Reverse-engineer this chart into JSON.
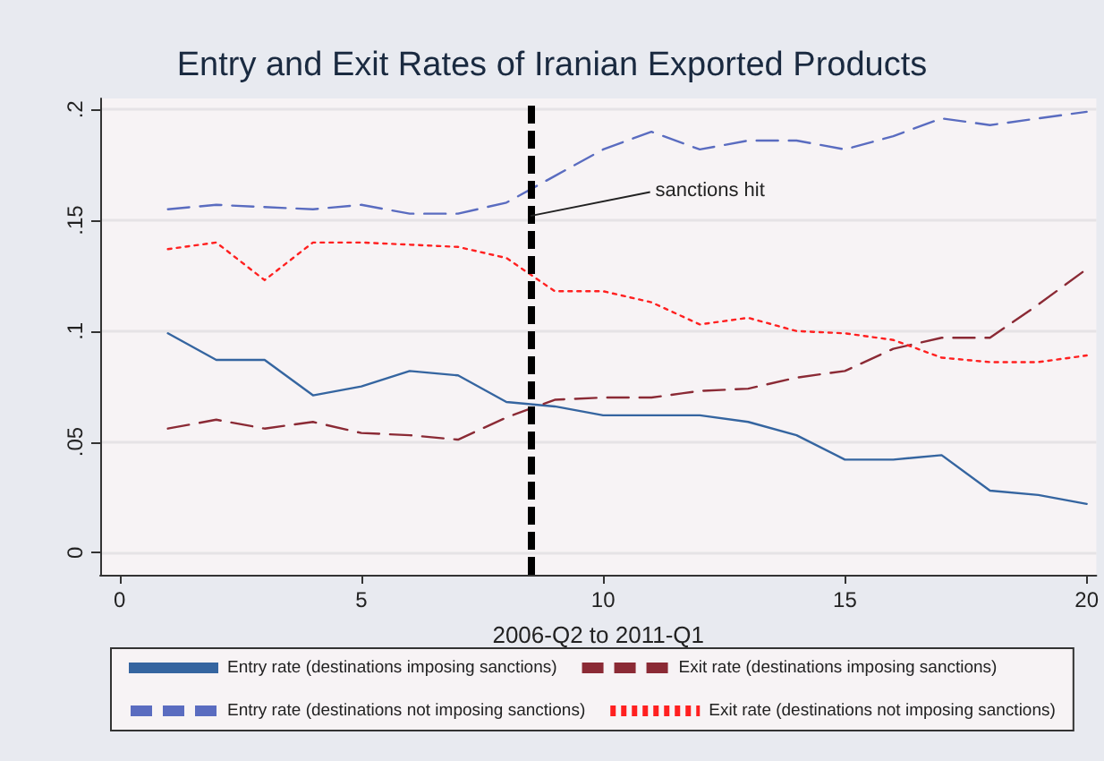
{
  "chart_data": {
    "type": "line",
    "title": "Entry and Exit Rates of Iranian Exported Products",
    "xlabel": "2006-Q2 to 2011-Q1",
    "x": [
      1,
      2,
      3,
      4,
      5,
      6,
      7,
      8,
      9,
      10,
      11,
      12,
      13,
      14,
      15,
      16,
      17,
      18,
      19,
      20
    ],
    "series": [
      {
        "name": "Entry rate (destinations imposing sanctions)",
        "color": "#3565a0",
        "line_style": "solid",
        "values": [
          0.099,
          0.087,
          0.087,
          0.071,
          0.075,
          0.082,
          0.08,
          0.068,
          0.066,
          0.062,
          0.062,
          0.062,
          0.059,
          0.053,
          0.042,
          0.042,
          0.044,
          0.028,
          0.026,
          0.022
        ]
      },
      {
        "name": "Exit rate (destinations imposing sanctions)",
        "color": "#8b2a35",
        "line_style": "dashed",
        "values": [
          0.056,
          0.06,
          0.056,
          0.059,
          0.054,
          0.053,
          0.051,
          0.061,
          0.069,
          0.07,
          0.07,
          0.073,
          0.074,
          0.079,
          0.082,
          0.092,
          0.097,
          0.097,
          0.112,
          0.128
        ]
      },
      {
        "name": "Entry rate (destinations not imposing sanctions)",
        "color": "#5a6cc0",
        "line_style": "dashed",
        "values": [
          0.155,
          0.157,
          0.156,
          0.155,
          0.157,
          0.153,
          0.153,
          0.158,
          0.17,
          0.182,
          0.19,
          0.182,
          0.186,
          0.186,
          0.182,
          0.188,
          0.196,
          0.193,
          0.196,
          0.199
        ]
      },
      {
        "name": "Exit rate (destinations not imposing sanctions)",
        "color": "#ff2020",
        "line_style": "dotted",
        "values": [
          0.137,
          0.14,
          0.123,
          0.14,
          0.14,
          0.139,
          0.138,
          0.133,
          0.118,
          0.118,
          0.113,
          0.103,
          0.106,
          0.1,
          0.099,
          0.096,
          0.088,
          0.086,
          0.086,
          0.089
        ]
      }
    ],
    "xlim": [
      -0.4,
      20.2
    ],
    "xticks": [
      0,
      5,
      10,
      15,
      20
    ],
    "ylim": [
      -0.01,
      0.205
    ],
    "yticks": [
      {
        "value": 0,
        "label": "0"
      },
      {
        "value": 0.05,
        "label": ".05"
      },
      {
        "value": 0.1,
        "label": ".1"
      },
      {
        "value": 0.15,
        "label": ".15"
      },
      {
        "value": 0.2,
        "label": ".2"
      }
    ],
    "ref_lines": [
      {
        "axis": "x",
        "value": 8.5,
        "color": "#000000",
        "line_style": "dashed"
      }
    ],
    "annotations": [
      {
        "text": "sanctions hit",
        "x": 8.5,
        "y": 0.152
      }
    ],
    "grid": "y",
    "legend": "bottom",
    "marker": "none"
  }
}
